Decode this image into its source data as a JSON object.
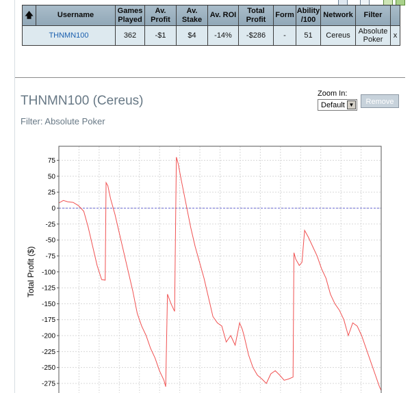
{
  "table": {
    "headers": {
      "username": "Username",
      "games_played": [
        "Games",
        "Played"
      ],
      "av_profit": [
        "Av.",
        "Profit"
      ],
      "av_stake": [
        "Av.",
        "Stake"
      ],
      "av_roi": "Av. ROI",
      "total_profit": [
        "Total",
        "Profit"
      ],
      "form": "Form",
      "ability": [
        "Ability",
        "/100"
      ],
      "network": "Network",
      "filter": "Filter"
    },
    "row": {
      "username": "THNMN100",
      "games_played": "362",
      "av_profit": "-$1",
      "av_stake": "$4",
      "av_roi": "-14%",
      "total_profit": "-$286",
      "form": "-",
      "ability": "51",
      "network": "Cereus",
      "filter": [
        "Absolute",
        "Poker"
      ],
      "remove": "x"
    }
  },
  "chart_panel": {
    "title": "THNMN100 (Cereus)",
    "filter": "Filter: Absolute Poker",
    "zoom_label": "Zoom In:",
    "zoom_value": "Default",
    "remove_label": "Remove"
  },
  "chart_data": {
    "type": "line",
    "ylabel": "Total Profit ($)",
    "yticks": [
      75,
      50,
      25,
      0,
      -25,
      -50,
      -75,
      -100,
      -125,
      -150,
      -175,
      -200,
      -225,
      -250,
      -275
    ],
    "ylim": [
      -290,
      97
    ],
    "xlim": [
      0,
      362
    ],
    "grid": true,
    "zero_line": true,
    "line_color": "#f05050",
    "series": [
      {
        "x": [
          0,
          5,
          10,
          16,
          22,
          28,
          33,
          38,
          43,
          48,
          52,
          53,
          55,
          58,
          63,
          68,
          73,
          78,
          83,
          88,
          93,
          98,
          103,
          108,
          113,
          118,
          120,
          122,
          126,
          130,
          132,
          134,
          138,
          143,
          148,
          153,
          158,
          163,
          168,
          173,
          178,
          183,
          188,
          193,
          198,
          203,
          206,
          208,
          213,
          218,
          223,
          228,
          233,
          238,
          243,
          248,
          253,
          258,
          263,
          264,
          266,
          270,
          273,
          276,
          280,
          285,
          290,
          295,
          300,
          305,
          310,
          315,
          320,
          325,
          330,
          335,
          340,
          345,
          350,
          355,
          360,
          362
        ],
        "y": [
          8,
          12,
          10,
          9,
          4,
          -5,
          -30,
          -60,
          -90,
          -112,
          -113,
          40,
          35,
          15,
          -10,
          -40,
          -70,
          -100,
          -130,
          -165,
          -185,
          -200,
          -220,
          -235,
          -255,
          -270,
          -280,
          -135,
          -150,
          -162,
          80,
          70,
          40,
          5,
          -30,
          -60,
          -85,
          -110,
          -140,
          -170,
          -180,
          -185,
          -210,
          -200,
          -215,
          -180,
          -190,
          -200,
          -230,
          -250,
          -262,
          -268,
          -275,
          -260,
          -255,
          -262,
          -270,
          -268,
          -265,
          -70,
          -80,
          -90,
          -85,
          -35,
          -45,
          -60,
          -75,
          -95,
          -110,
          -135,
          -150,
          -160,
          -175,
          -200,
          -180,
          -185,
          -200,
          -220,
          -240,
          -260,
          -280,
          -286
        ]
      }
    ]
  }
}
